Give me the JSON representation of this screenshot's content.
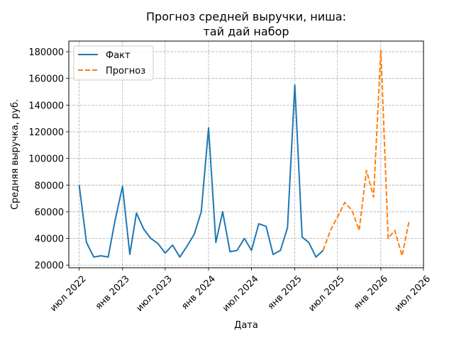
{
  "chart_data": {
    "type": "line",
    "title": [
      "Прогноз средней выручки, ниша:",
      "тай дай набор"
    ],
    "xlabel": "Дата",
    "ylabel": "Средняя выручка, руб.",
    "x_ticks": [
      {
        "date": "2022-07-01",
        "label": "июл 2022"
      },
      {
        "date": "2023-01-01",
        "label": "янв 2023"
      },
      {
        "date": "2023-07-01",
        "label": "июл 2023"
      },
      {
        "date": "2024-01-01",
        "label": "янв 2024"
      },
      {
        "date": "2024-07-01",
        "label": "июл 2024"
      },
      {
        "date": "2025-01-01",
        "label": "янв 2025"
      },
      {
        "date": "2025-07-01",
        "label": "июл 2025"
      },
      {
        "date": "2026-01-01",
        "label": "янв 2026"
      },
      {
        "date": "2026-07-01",
        "label": "июл 2026"
      }
    ],
    "y_ticks": [
      20000,
      40000,
      60000,
      80000,
      100000,
      120000,
      140000,
      160000,
      180000
    ],
    "xlim": [
      "2022-05-18",
      "2026-07-01"
    ],
    "ylim": [
      18000,
      188000
    ],
    "grid": true,
    "legend_position": "top-left",
    "series": [
      {
        "name": "Факт",
        "color": "#1f77b4",
        "style": "solid",
        "points": [
          [
            "2022-07-01",
            80000
          ],
          [
            "2022-08-01",
            37000
          ],
          [
            "2022-09-01",
            26000
          ],
          [
            "2022-10-01",
            27000
          ],
          [
            "2022-11-01",
            26000
          ],
          [
            "2022-12-01",
            54000
          ],
          [
            "2023-01-01",
            79000
          ],
          [
            "2023-02-01",
            28000
          ],
          [
            "2023-03-01",
            59000
          ],
          [
            "2023-04-01",
            47000
          ],
          [
            "2023-05-01",
            40000
          ],
          [
            "2023-06-01",
            36000
          ],
          [
            "2023-07-01",
            29000
          ],
          [
            "2023-08-01",
            35000
          ],
          [
            "2023-09-01",
            26000
          ],
          [
            "2023-10-01",
            34000
          ],
          [
            "2023-11-01",
            43000
          ],
          [
            "2023-12-01",
            60000
          ],
          [
            "2024-01-01",
            123000
          ],
          [
            "2024-02-01",
            37000
          ],
          [
            "2024-03-01",
            60000
          ],
          [
            "2024-04-01",
            30000
          ],
          [
            "2024-05-01",
            31000
          ],
          [
            "2024-06-01",
            40000
          ],
          [
            "2024-07-01",
            31000
          ],
          [
            "2024-08-01",
            51000
          ],
          [
            "2024-09-01",
            49000
          ],
          [
            "2024-10-01",
            28000
          ],
          [
            "2024-11-01",
            31000
          ],
          [
            "2024-12-01",
            48000
          ],
          [
            "2025-01-01",
            155000
          ],
          [
            "2025-02-01",
            41000
          ],
          [
            "2025-03-01",
            37000
          ],
          [
            "2025-04-01",
            26000
          ],
          [
            "2025-05-01",
            31000
          ]
        ]
      },
      {
        "name": "Прогноз",
        "color": "#ff7f0e",
        "style": "dashed",
        "points": [
          [
            "2025-05-01",
            31000
          ],
          [
            "2025-06-01",
            46000
          ],
          [
            "2025-07-01",
            56000
          ],
          [
            "2025-08-01",
            67000
          ],
          [
            "2025-09-01",
            61000
          ],
          [
            "2025-10-01",
            46000
          ],
          [
            "2025-11-01",
            91000
          ],
          [
            "2025-12-01",
            71000
          ],
          [
            "2026-01-01",
            181000
          ],
          [
            "2026-02-01",
            40000
          ],
          [
            "2026-03-01",
            46000
          ],
          [
            "2026-04-01",
            27000
          ],
          [
            "2026-05-01",
            53000
          ]
        ]
      }
    ]
  }
}
